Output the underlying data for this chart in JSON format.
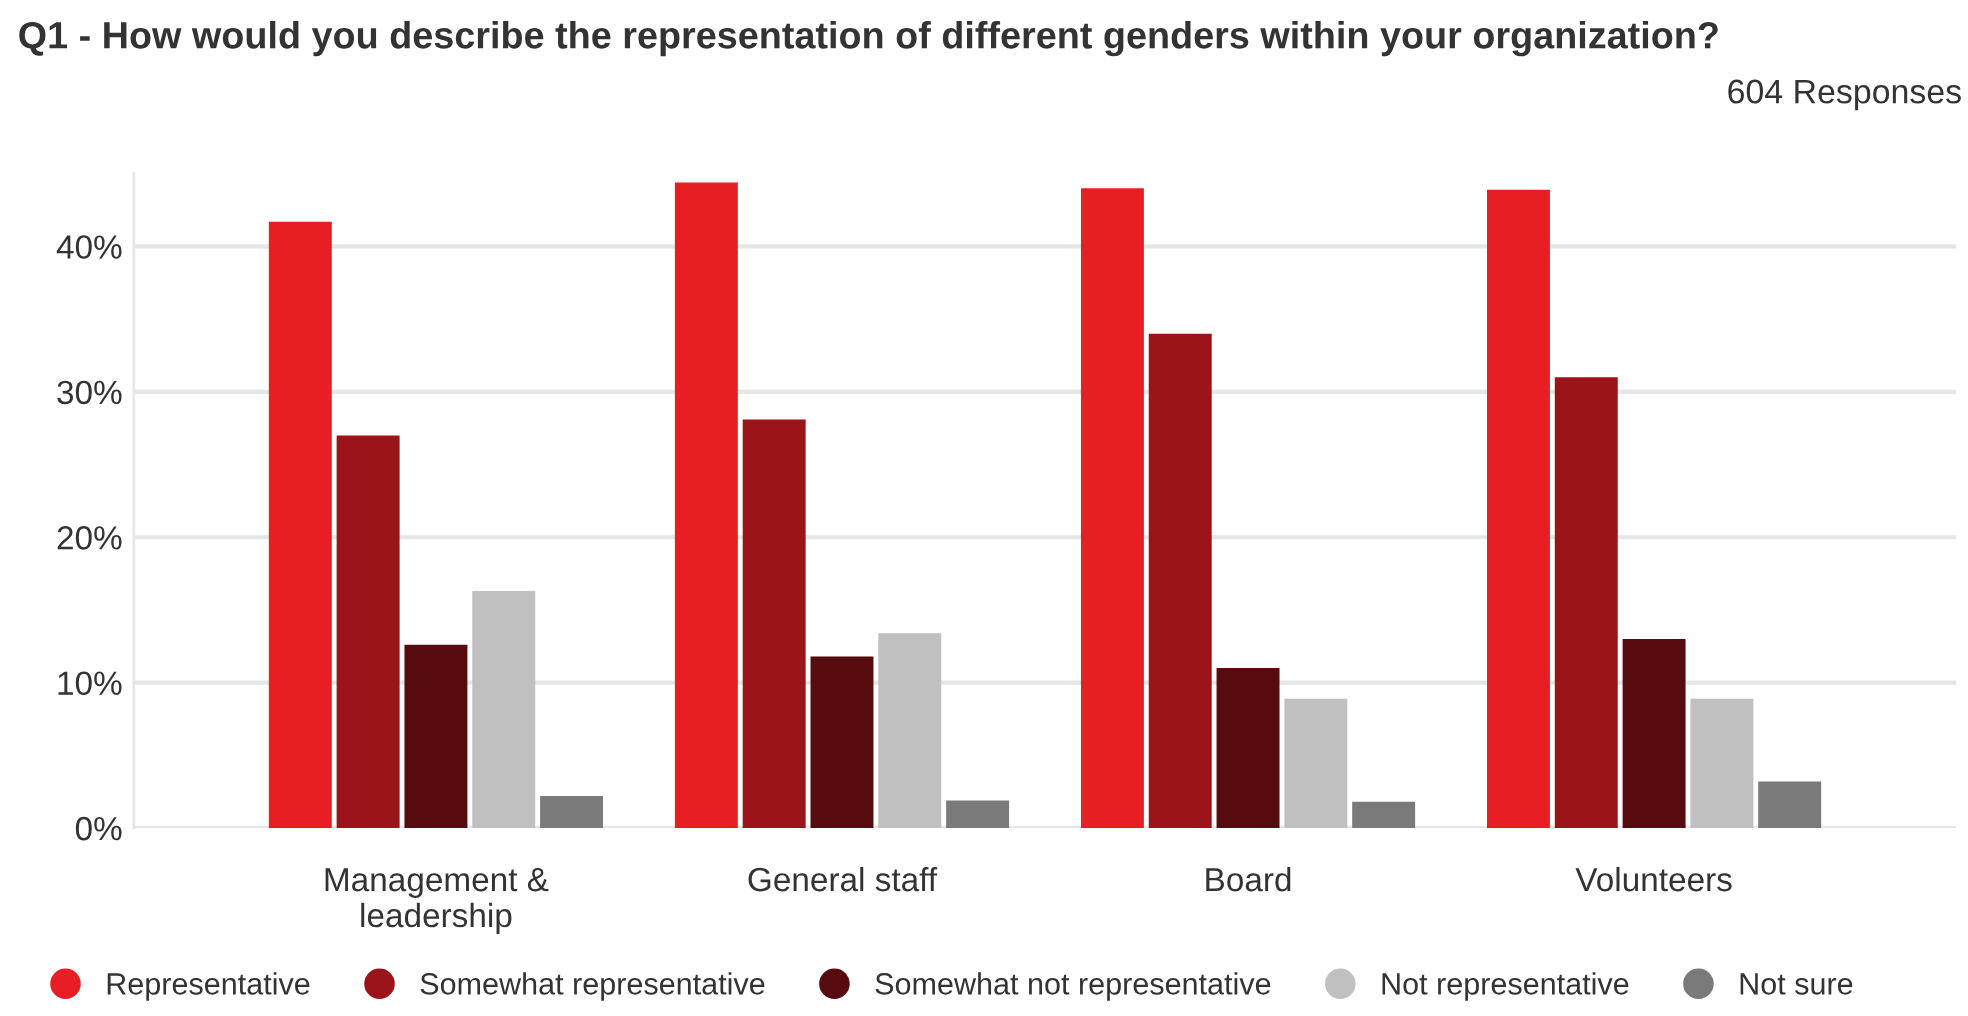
{
  "chart_data": {
    "type": "bar",
    "title": "Q1 - How would you describe the representation of different genders within your organization?",
    "subtitle": "604 Responses",
    "categories": [
      "Management &\nleadership",
      "General staff",
      "Board",
      "Volunteers"
    ],
    "series": [
      {
        "name": "Representative",
        "color": "#e81e25",
        "values": [
          41.7,
          44.4,
          44.0,
          43.9
        ]
      },
      {
        "name": "Somewhat representative",
        "color": "#9b1419",
        "values": [
          27.0,
          28.1,
          34.0,
          31.0
        ]
      },
      {
        "name": "Somewhat not representative",
        "color": "#560b0e",
        "values": [
          12.6,
          11.8,
          11.0,
          13.0
        ]
      },
      {
        "name": "Not representative",
        "color": "#c0c0c0",
        "values": [
          16.3,
          13.4,
          8.9,
          8.9
        ]
      },
      {
        "name": "Not sure",
        "color": "#7a7a7a",
        "values": [
          2.2,
          1.9,
          1.8,
          3.2
        ]
      }
    ],
    "ylim": [
      0,
      45
    ],
    "yticks": [
      {
        "value": 0,
        "label": "0%"
      },
      {
        "value": 10,
        "label": "10%"
      },
      {
        "value": 20,
        "label": "20%"
      },
      {
        "value": 30,
        "label": "30%"
      },
      {
        "value": 40,
        "label": "40%"
      }
    ],
    "grid": "y",
    "legend": "bottom",
    "marker": "circle"
  }
}
